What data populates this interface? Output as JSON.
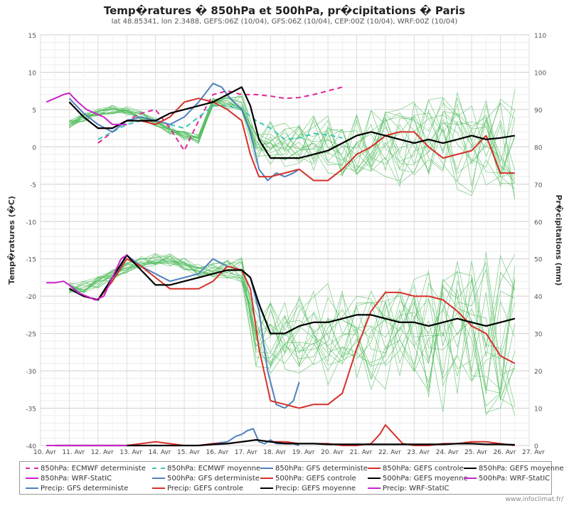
{
  "header": {
    "title": "Temp�ratures � 850hPa et 500hPa, pr�cipitations � Paris",
    "subtitle": "lat 48.85341, lon 2.3488, GEFS:06Z (10/04), GFS:06Z (10/04), CEP:00Z (10/04), WRF:00Z (10/04)"
  },
  "credit": "www.infoclimat.fr/",
  "legend": [
    {
      "label": "850hPa: ECMWF deterministe",
      "color": "#dd2a9a",
      "dash": "dashed"
    },
    {
      "label": "850hPa: ECMWF moyenne",
      "color": "#3cc7b6",
      "dash": "dashed"
    },
    {
      "label": "850hPa: GFS deterministe",
      "color": "#4f81bd",
      "dash": "solid"
    },
    {
      "label": "850hPa: GEFS controle",
      "color": "#d6312a",
      "dash": "solid"
    },
    {
      "label": "850hPa: GEFS moyenne",
      "color": "#000000",
      "dash": "solid"
    },
    {
      "label": "850hPa: WRF-StatIC",
      "color": "#cc22cc",
      "dash": "solid"
    },
    {
      "label": "500hPa: GFS deterministe",
      "color": "#4f81bd",
      "dash": "solid"
    },
    {
      "label": "500hPa: GEFS controle",
      "color": "#d6312a",
      "dash": "solid"
    },
    {
      "label": "500hPa: GEFS moyenne",
      "color": "#000000",
      "dash": "solid"
    },
    {
      "label": "500hPa: WRF-StatIC",
      "color": "#cc22cc",
      "dash": "solid"
    },
    {
      "label": "Precip: GFS deterministe",
      "color": "#4f81bd",
      "dash": "solid"
    },
    {
      "label": "Precip: GEFS controle",
      "color": "#d6312a",
      "dash": "solid"
    },
    {
      "label": "Precip: GEFS moyenne",
      "color": "#000000",
      "dash": "solid"
    },
    {
      "label": "Precip: WRF-StatIC",
      "color": "#cc22cc",
      "dash": "solid"
    }
  ],
  "chart_data": {
    "type": "line",
    "ylabel_left": "Temp�ratures (�C)",
    "ylabel_right": "Pr�cipitations (mm)",
    "ylim_left": [
      -40,
      15
    ],
    "ylim_right": [
      0,
      110
    ],
    "yticks_left": [
      15,
      10,
      5,
      0,
      -5,
      -10,
      -15,
      -20,
      -25,
      -30,
      -35,
      -40
    ],
    "yticks_right": [
      110,
      100,
      90,
      80,
      70,
      60,
      50,
      40,
      30,
      20,
      10,
      0
    ],
    "xlim": [
      10,
      27
    ],
    "xticks": [
      "10. Avr",
      "11. Avr",
      "12. Avr",
      "13. Avr",
      "14. Avr",
      "15. Avr",
      "16. Avr",
      "17. Avr",
      "18. Avr",
      "19. Avr",
      "20. Avr",
      "21. Avr",
      "22. Avr",
      "23. Avr",
      "24. Avr",
      "25. Avr",
      "26. Avr",
      "27. Avr"
    ],
    "grid": true,
    "series": [
      {
        "name": "850hPa: ECMWF deterministe",
        "color": "#dd2a9a",
        "dash": "dashed",
        "x": [
          12,
          12.5,
          13,
          13.5,
          14,
          14.5,
          15,
          15.5,
          16,
          16.5,
          17,
          17.5,
          18,
          18.5,
          19,
          19.5,
          20,
          20.5
        ],
        "y": [
          0.5,
          2,
          3.5,
          4.5,
          5,
          2.5,
          -0.5,
          3.5,
          7,
          7.5,
          7,
          7,
          6.8,
          6.5,
          6.6,
          7,
          7.5,
          8
        ]
      },
      {
        "name": "850hPa: ECMWF moyenne",
        "color": "#3cc7b6",
        "dash": "dashed",
        "x": [
          12,
          12.5,
          13,
          13.5,
          14,
          14.5,
          15,
          15.5,
          16,
          16.5,
          17,
          17.5,
          18,
          18.5,
          19,
          19.5,
          20,
          20.5
        ],
        "y": [
          1,
          2,
          3,
          3.5,
          3.5,
          3,
          2.5,
          4,
          5.5,
          5.5,
          5,
          3.5,
          2.5,
          1,
          1.2,
          1.8,
          1.6,
          1.2
        ]
      },
      {
        "name": "850hPa: GFS deterministe",
        "color": "#4f81bd",
        "dash": "solid",
        "x": [
          11,
          11.5,
          12,
          12.5,
          13,
          13.5,
          14,
          14.5,
          15,
          15.5,
          16,
          16.3,
          16.6,
          17,
          17.3,
          17.6,
          17.9,
          18.2,
          18.5,
          18.8,
          19
        ],
        "y": [
          6.5,
          4.5,
          3,
          2,
          3.5,
          4,
          3.5,
          3,
          4,
          6,
          8.5,
          8,
          6.5,
          5,
          2,
          -3,
          -4.5,
          -3.5,
          -4,
          -3.5,
          -3
        ]
      },
      {
        "name": "850hPa: GEFS controle",
        "color": "#d6312a",
        "dash": "solid",
        "x": [
          11,
          11.5,
          12,
          12.5,
          13,
          13.5,
          14,
          14.5,
          15,
          15.5,
          16,
          16.5,
          17,
          17.3,
          17.6,
          18,
          18.5,
          19,
          19.5,
          20,
          20.5,
          21,
          21.5,
          22,
          22.5,
          23,
          23.5,
          24,
          24.5,
          25,
          25.5,
          26,
          26.5
        ],
        "y": [
          6,
          4,
          2.5,
          2.5,
          3.5,
          3.5,
          3,
          4,
          6,
          6.5,
          6,
          5,
          3.5,
          -1,
          -4,
          -4,
          -3.5,
          -3,
          -4.5,
          -4.5,
          -3,
          -1,
          0,
          1.5,
          2,
          2,
          0,
          -1.5,
          -1,
          -0.5,
          1.5,
          -3.5,
          -3.5
        ]
      },
      {
        "name": "850hPa: GEFS moyenne",
        "color": "#000000",
        "dash": "solid",
        "x": [
          11,
          11.5,
          12,
          12.5,
          13,
          13.5,
          14,
          14.5,
          15,
          15.5,
          16,
          16.5,
          17,
          17.3,
          17.6,
          18,
          18.5,
          19,
          19.5,
          20,
          20.5,
          21,
          21.5,
          22,
          22.5,
          23,
          23.5,
          24,
          24.5,
          25,
          25.5,
          26,
          26.5
        ],
        "y": [
          6,
          4,
          2.5,
          2.5,
          3.5,
          3.5,
          3.5,
          4.5,
          5,
          5.5,
          6,
          7,
          8,
          5.5,
          1,
          -1.5,
          -1.5,
          -1.5,
          -1,
          -0.5,
          0.5,
          1.5,
          2,
          1.5,
          1,
          0.5,
          1,
          0.5,
          1,
          1.5,
          1,
          1.2,
          1.5
        ]
      },
      {
        "name": "850hPa: WRF-StatIC",
        "color": "#cc22cc",
        "dash": "solid",
        "x": [
          10.2,
          10.5,
          10.8,
          11,
          11.3,
          11.6,
          11.9,
          12.2,
          12.5,
          12.8,
          13
        ],
        "y": [
          6,
          6.5,
          7,
          7.2,
          6,
          5,
          4.5,
          4,
          3,
          3,
          3
        ]
      },
      {
        "name": "500hPa: GFS deterministe",
        "color": "#4f81bd",
        "dash": "solid",
        "x": [
          11,
          11.5,
          12,
          12.5,
          13,
          13.5,
          14,
          14.5,
          15,
          15.5,
          16,
          16.5,
          17,
          17.3,
          17.6,
          17.9,
          18.2,
          18.5,
          18.8,
          19
        ],
        "y": [
          -18.5,
          -20,
          -20.5,
          -18,
          -14.5,
          -16,
          -17,
          -18,
          -17.5,
          -17,
          -15,
          -16,
          -16.5,
          -17.5,
          -22,
          -30,
          -34.5,
          -35,
          -34,
          -31.5
        ]
      },
      {
        "name": "500hPa: GEFS controle",
        "color": "#d6312a",
        "dash": "solid",
        "x": [
          11,
          11.5,
          12,
          12.5,
          13,
          13.5,
          14,
          14.5,
          15,
          15.5,
          16,
          16.5,
          17,
          17.3,
          17.6,
          18,
          18.5,
          19,
          19.5,
          20,
          20.5,
          21,
          21.5,
          22,
          22.5,
          23,
          23.5,
          24,
          24.5,
          25,
          25.5,
          26,
          26.5
        ],
        "y": [
          -19,
          -20,
          -20.5,
          -18,
          -15,
          -16,
          -17.5,
          -19,
          -19,
          -19,
          -18,
          -16,
          -16.5,
          -19,
          -27,
          -34,
          -34.5,
          -35,
          -34.5,
          -34.5,
          -33,
          -27,
          -22,
          -19.5,
          -19.5,
          -20,
          -20,
          -20.5,
          -22,
          -24,
          -25,
          -28,
          -29
        ]
      },
      {
        "name": "500hPa: GEFS moyenne",
        "color": "#000000",
        "dash": "solid",
        "x": [
          11,
          11.5,
          12,
          12.5,
          13,
          13.5,
          14,
          14.5,
          15,
          15.5,
          16,
          16.5,
          17,
          17.3,
          17.6,
          18,
          18.5,
          19,
          19.5,
          20,
          20.5,
          21,
          21.5,
          22,
          22.5,
          23,
          23.5,
          24,
          24.5,
          25,
          25.5,
          26,
          26.5
        ],
        "y": [
          -19,
          -20,
          -20.5,
          -17.5,
          -14.5,
          -16.5,
          -18.5,
          -18.5,
          -18,
          -17.5,
          -17,
          -16.5,
          -16.5,
          -17.5,
          -21,
          -25,
          -25,
          -24,
          -23.5,
          -23.5,
          -23,
          -22.5,
          -22.5,
          -23,
          -23.5,
          -23.5,
          -24,
          -23.5,
          -23,
          -23.5,
          -24,
          -23.5,
          -23
        ]
      },
      {
        "name": "500hPa: WRF-StatIC",
        "color": "#cc22cc",
        "dash": "solid",
        "x": [
          10.2,
          10.5,
          10.8,
          11,
          11.3,
          11.6,
          11.9,
          12.2,
          12.5,
          12.8,
          13
        ],
        "y": [
          -18.2,
          -18.2,
          -18,
          -18.5,
          -19.5,
          -20,
          -20.5,
          -20,
          -17.5,
          -15,
          -14.5
        ]
      },
      {
        "name": "Precip: GFS deterministe",
        "color": "#4f81bd",
        "dash": "solid",
        "x": [
          15.5,
          16,
          16.5,
          16.8,
          17,
          17.2,
          17.4,
          17.6,
          17.8,
          18,
          18.2,
          18.4,
          18.6,
          18.8,
          19
        ],
        "y": [
          0,
          0.5,
          1,
          2.5,
          3,
          4,
          4.5,
          1,
          0.5,
          1.5,
          0.5,
          0.5,
          1,
          0.5,
          0
        ]
      },
      {
        "name": "Precip: GEFS controle",
        "color": "#d6312a",
        "dash": "solid",
        "x": [
          10.5,
          11,
          11.5,
          12,
          12.5,
          13,
          13.5,
          14,
          14.5,
          15,
          15.5,
          16,
          16.5,
          17,
          17.5,
          18,
          18.5,
          19,
          19.5,
          20,
          20.5,
          21,
          21.5,
          21.8,
          22,
          22.3,
          22.6,
          23,
          23.5,
          24,
          24.5,
          25,
          25.5,
          26,
          26.5
        ],
        "y": [
          0,
          0,
          0,
          0,
          0,
          0,
          0.5,
          1,
          0.5,
          0,
          0,
          0.5,
          0.5,
          1,
          1.5,
          1,
          1,
          0.5,
          0.5,
          0.5,
          0,
          0,
          0.5,
          3,
          5.5,
          3,
          0.5,
          0,
          0,
          0.5,
          0.5,
          1,
          1,
          0.5,
          0
        ]
      },
      {
        "name": "Precip: GEFS moyenne",
        "color": "#000000",
        "dash": "solid",
        "x": [
          10.5,
          11,
          11.5,
          12,
          12.5,
          13,
          13.5,
          14,
          14.5,
          15,
          15.5,
          16,
          16.5,
          17,
          17.5,
          18,
          18.5,
          19,
          19.5,
          20,
          20.5,
          21,
          21.5,
          22,
          22.5,
          23,
          23.5,
          24,
          24.5,
          25,
          25.5,
          26,
          26.5
        ],
        "y": [
          0,
          0,
          0,
          0,
          0,
          0,
          0,
          0,
          0,
          0,
          0,
          0.3,
          0.5,
          1,
          1.5,
          1,
          0.5,
          0.5,
          0.5,
          0.3,
          0.3,
          0.3,
          0.3,
          0.3,
          0.3,
          0.3,
          0.3,
          0.3,
          0.5,
          0.5,
          0.3,
          0.3,
          0.2
        ]
      },
      {
        "name": "Precip: WRF-StatIC",
        "color": "#cc22cc",
        "dash": "solid",
        "x": [
          10.2,
          11,
          12,
          13
        ],
        "y": [
          0,
          0,
          0,
          0
        ]
      }
    ]
  }
}
